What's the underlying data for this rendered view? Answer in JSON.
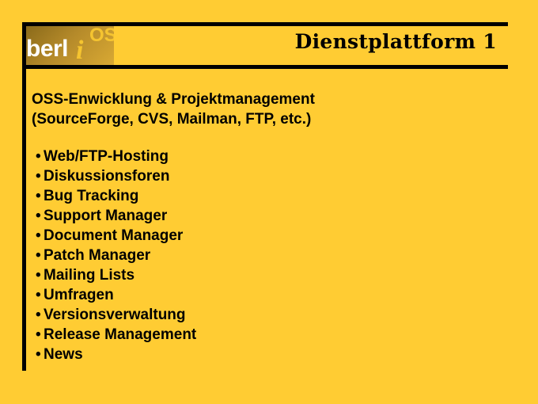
{
  "logo": {
    "word": "berl",
    "i": "i",
    "os": "OS"
  },
  "title": "Dienstplattform 1",
  "subtitle": {
    "line1": "OSS-Enwicklung & Projektmanagement",
    "line2": "(SourceForge, CVS, Mailman, FTP, etc.)"
  },
  "bullet_symbol": "•",
  "items": [
    "Web/FTP-Hosting",
    "Diskussionsforen",
    "Bug Tracking",
    "Support Manager",
    "Document Manager",
    "Patch Manager",
    "Mailing Lists",
    "Umfragen",
    "Versionsverwaltung",
    "Release Management",
    "News"
  ],
  "colors": {
    "background": "#ffcc33",
    "rules": "#000000"
  }
}
